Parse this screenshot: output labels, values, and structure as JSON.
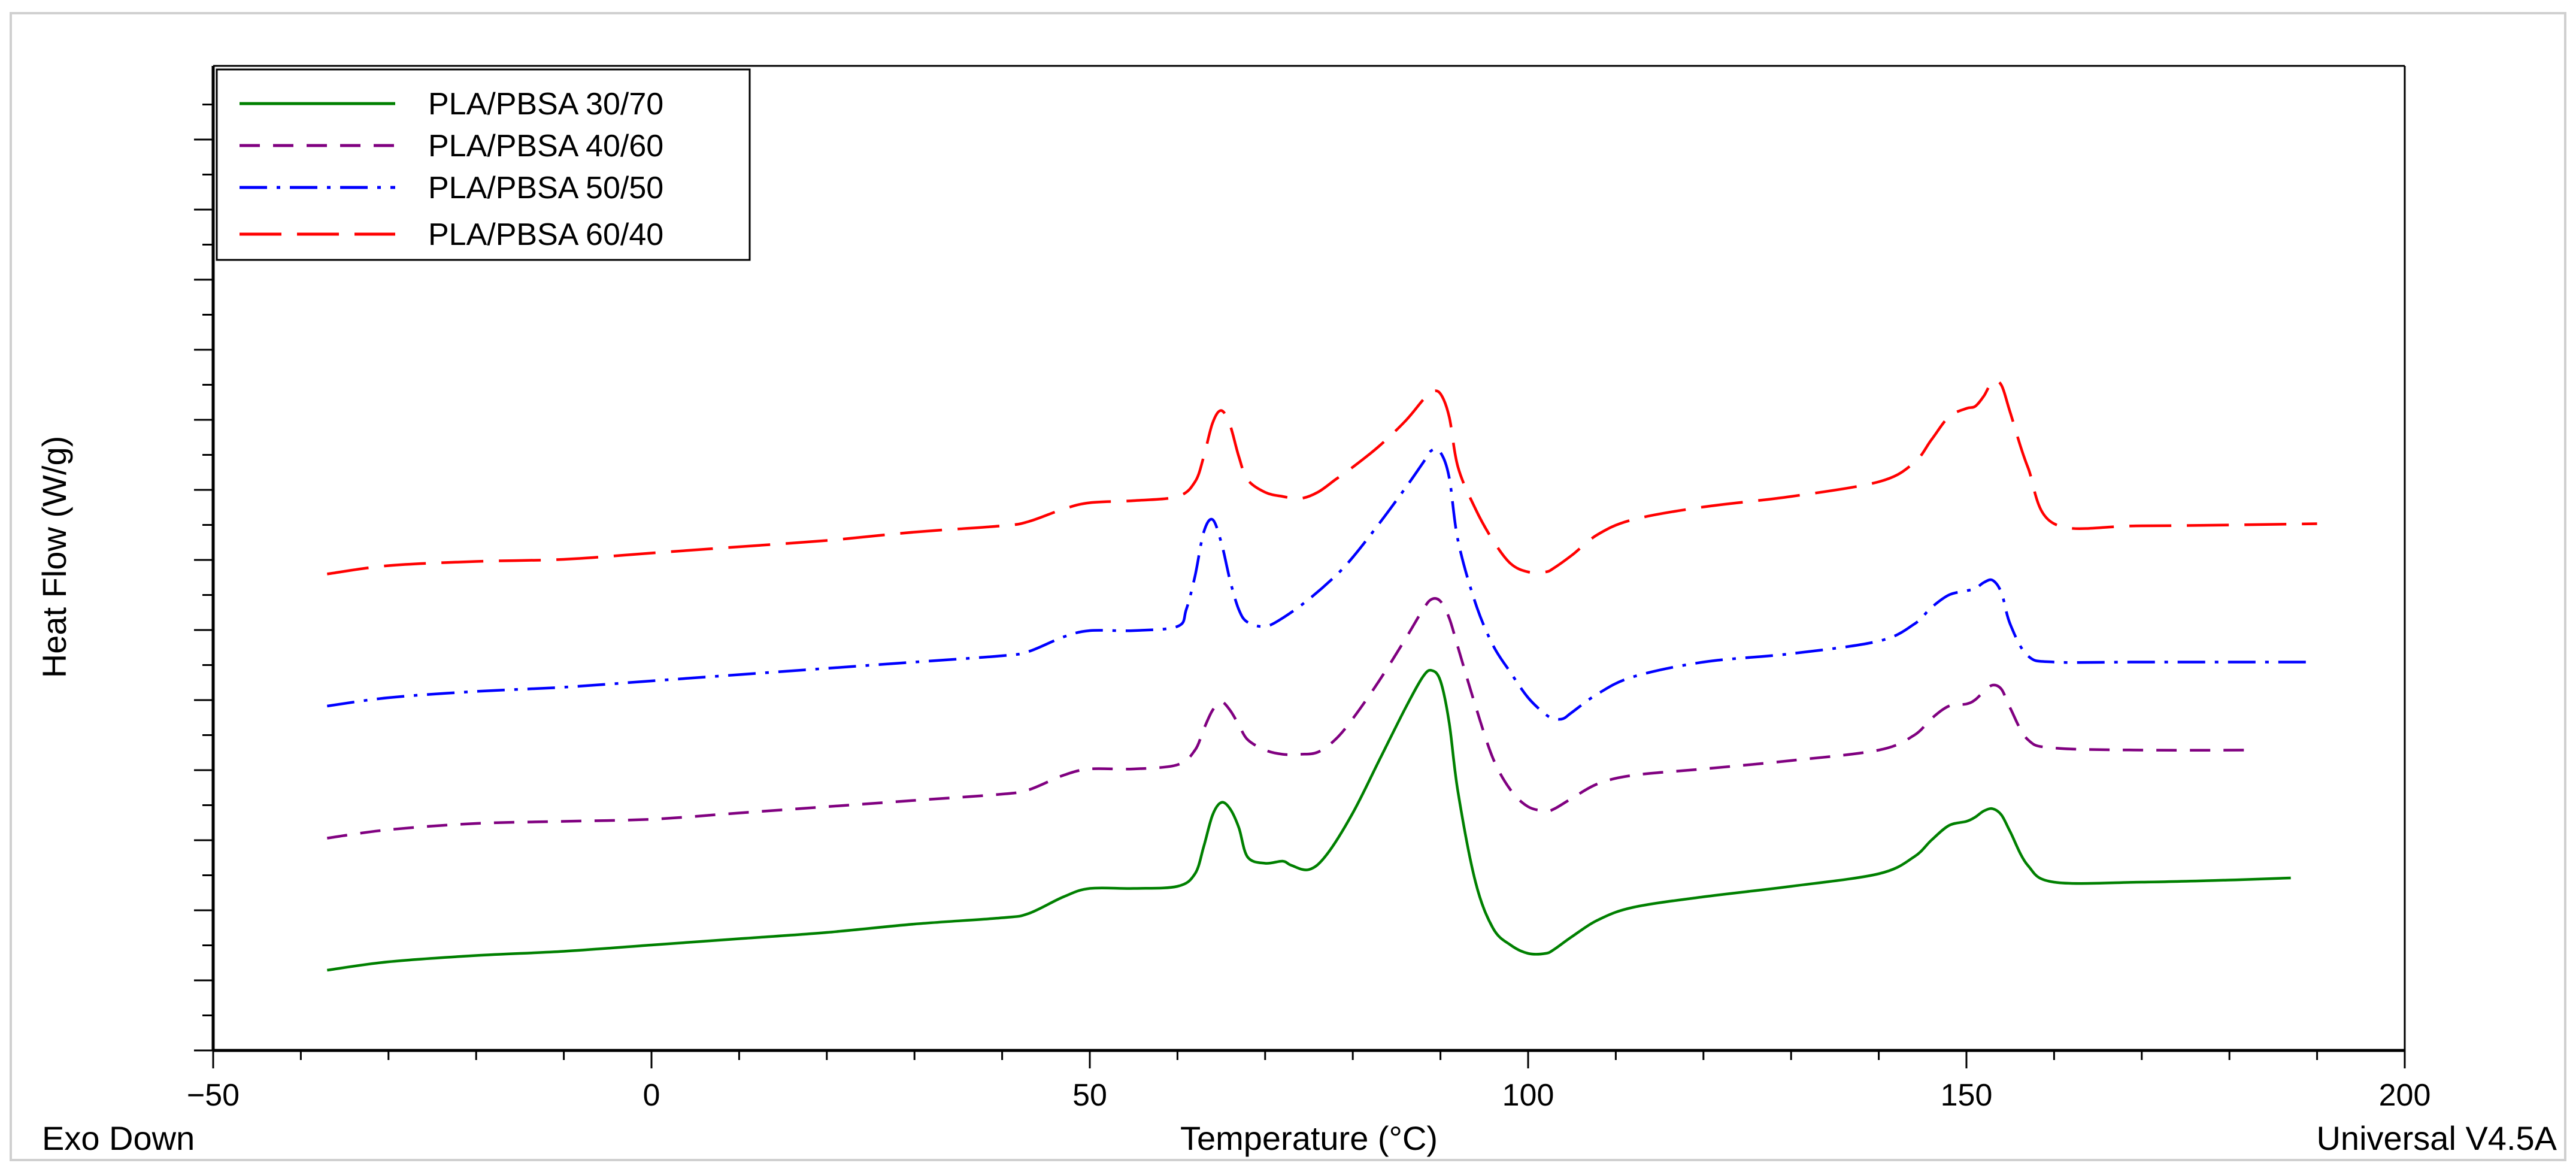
{
  "chart_data": {
    "type": "line",
    "title": "",
    "xlabel": "Temperature (°C)",
    "ylabel": "Heat Flow (W/g)",
    "xlim": [
      -50,
      200
    ],
    "x_ticks": [
      -50,
      0,
      50,
      100,
      150,
      200
    ],
    "x_tick_labels": [
      "−50",
      "0",
      "50",
      "100",
      "150",
      "200"
    ],
    "y_tick_labels_shown": false,
    "footer_left": "Exo Down",
    "footer_right": "Universal V4.5A",
    "grid": false,
    "legend_position": "top-left",
    "series": [
      {
        "name": "PLA/PBSA 30/70",
        "color": "#008000",
        "dash": "solid",
        "x": [
          -37,
          -30,
          -20,
          -10,
          0,
          10,
          20,
          30,
          40,
          43,
          47,
          50,
          55,
          60,
          62,
          63,
          64,
          65,
          66,
          67,
          68,
          70,
          72,
          73,
          75,
          77,
          80,
          83,
          86,
          88,
          89,
          90,
          91,
          92,
          94,
          96,
          98,
          100,
          102,
          103,
          105,
          108,
          112,
          120,
          130,
          140,
          144,
          146,
          148,
          150,
          151,
          152,
          153,
          154,
          155,
          157,
          160,
          170,
          180,
          187
        ],
        "y": [
          0.0,
          0.04,
          0.07,
          0.09,
          0.12,
          0.15,
          0.18,
          0.22,
          0.25,
          0.27,
          0.35,
          0.39,
          0.39,
          0.4,
          0.46,
          0.59,
          0.74,
          0.8,
          0.77,
          0.68,
          0.54,
          0.51,
          0.52,
          0.5,
          0.48,
          0.55,
          0.75,
          1.0,
          1.25,
          1.4,
          1.43,
          1.38,
          1.18,
          0.85,
          0.42,
          0.2,
          0.12,
          0.08,
          0.08,
          0.1,
          0.16,
          0.24,
          0.3,
          0.35,
          0.4,
          0.46,
          0.54,
          0.62,
          0.69,
          0.71,
          0.73,
          0.76,
          0.77,
          0.74,
          0.66,
          0.5,
          0.42,
          0.42,
          0.43,
          0.44
        ]
      },
      {
        "name": "PLA/PBSA 40/60",
        "color": "#800080",
        "dash": "dashed",
        "x": [
          -37,
          -30,
          -20,
          -10,
          0,
          10,
          20,
          30,
          40,
          43,
          47,
          50,
          55,
          60,
          62,
          63,
          64,
          65,
          66,
          67,
          68,
          70,
          72,
          74,
          76,
          78,
          80,
          83,
          86,
          88,
          89,
          90,
          91,
          92,
          94,
          96,
          98,
          100,
          102,
          103,
          105,
          108,
          112,
          120,
          130,
          140,
          144,
          146,
          148,
          150,
          151,
          152,
          153,
          154,
          155,
          157,
          160,
          170,
          183
        ],
        "y": [
          0.63,
          0.67,
          0.7,
          0.71,
          0.72,
          0.75,
          0.78,
          0.81,
          0.84,
          0.86,
          0.93,
          0.96,
          0.96,
          0.98,
          1.05,
          1.15,
          1.24,
          1.28,
          1.24,
          1.17,
          1.1,
          1.05,
          1.03,
          1.03,
          1.04,
          1.1,
          1.2,
          1.38,
          1.58,
          1.72,
          1.77,
          1.76,
          1.68,
          1.54,
          1.26,
          1.01,
          0.86,
          0.78,
          0.76,
          0.77,
          0.82,
          0.89,
          0.93,
          0.96,
          1.0,
          1.05,
          1.12,
          1.2,
          1.26,
          1.27,
          1.29,
          1.33,
          1.36,
          1.34,
          1.25,
          1.1,
          1.06,
          1.05,
          1.05
        ]
      },
      {
        "name": "PLA/PBSA 50/50",
        "color": "#0000ff",
        "dash": "dash-dot",
        "x": [
          -37,
          -30,
          -20,
          -10,
          0,
          10,
          20,
          30,
          40,
          43,
          47,
          50,
          55,
          60,
          61,
          62,
          63,
          64,
          65,
          66,
          67,
          68,
          70,
          72,
          75,
          78,
          80,
          83,
          86,
          88,
          89,
          90,
          91,
          92,
          94,
          96,
          98,
          100,
          102,
          103,
          104,
          105,
          108,
          112,
          120,
          130,
          140,
          144,
          146,
          148,
          150,
          151,
          152,
          153,
          154,
          155,
          157,
          160,
          170,
          189
        ],
        "y": [
          1.26,
          1.3,
          1.33,
          1.35,
          1.38,
          1.41,
          1.44,
          1.47,
          1.5,
          1.52,
          1.59,
          1.62,
          1.62,
          1.64,
          1.72,
          1.88,
          2.09,
          2.15,
          2.04,
          1.86,
          1.72,
          1.66,
          1.64,
          1.68,
          1.77,
          1.88,
          1.97,
          2.13,
          2.3,
          2.42,
          2.48,
          2.47,
          2.35,
          2.05,
          1.75,
          1.55,
          1.42,
          1.3,
          1.22,
          1.2,
          1.2,
          1.23,
          1.32,
          1.4,
          1.47,
          1.51,
          1.57,
          1.65,
          1.73,
          1.79,
          1.81,
          1.82,
          1.85,
          1.86,
          1.8,
          1.65,
          1.5,
          1.47,
          1.47,
          1.47
        ]
      },
      {
        "name": "PLA/PBSA 60/40",
        "color": "#ff0000",
        "dash": "long-dash",
        "x": [
          -37,
          -30,
          -20,
          -10,
          0,
          10,
          20,
          30,
          40,
          43,
          47,
          50,
          55,
          60,
          62,
          63,
          64,
          65,
          66,
          67,
          68,
          70,
          72,
          74,
          76,
          78,
          80,
          83,
          86,
          88,
          89,
          90,
          91,
          92,
          94,
          96,
          98,
          100,
          102,
          103,
          105,
          108,
          112,
          120,
          130,
          140,
          144,
          146,
          148,
          150,
          151,
          152,
          153,
          154,
          155,
          157,
          160,
          170,
          190
        ],
        "y": [
          1.89,
          1.93,
          1.95,
          1.96,
          1.99,
          2.02,
          2.05,
          2.09,
          2.12,
          2.14,
          2.2,
          2.23,
          2.24,
          2.26,
          2.33,
          2.45,
          2.61,
          2.67,
          2.6,
          2.45,
          2.34,
          2.28,
          2.26,
          2.25,
          2.28,
          2.34,
          2.4,
          2.5,
          2.62,
          2.72,
          2.76,
          2.75,
          2.64,
          2.4,
          2.2,
          2.05,
          1.94,
          1.9,
          1.9,
          1.92,
          1.98,
          2.08,
          2.15,
          2.21,
          2.26,
          2.33,
          2.42,
          2.53,
          2.64,
          2.68,
          2.69,
          2.74,
          2.81,
          2.79,
          2.66,
          2.4,
          2.13,
          2.12,
          2.13
        ]
      }
    ]
  }
}
